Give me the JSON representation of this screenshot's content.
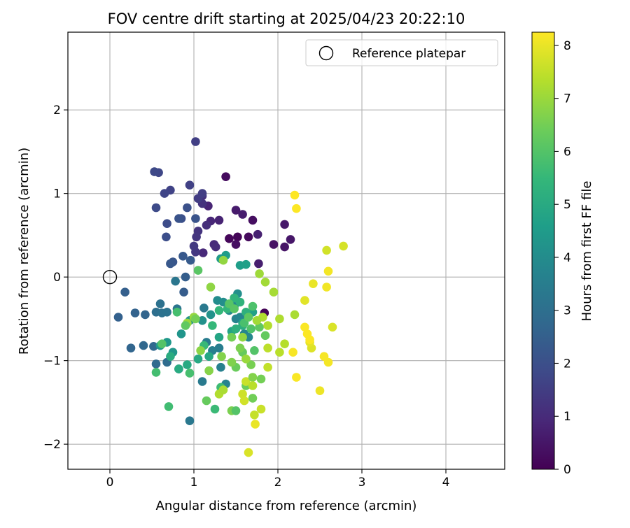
{
  "chart_data": {
    "type": "scatter",
    "title": "FOV centre drift starting at 2025/04/23 20:22:10",
    "xlabel": "Angular distance from reference (arcmin)",
    "ylabel": "Rotation from reference (arcmin)",
    "xlim": [
      -0.5,
      4.7
    ],
    "ylim": [
      -2.3,
      2.93
    ],
    "xticks": [
      0,
      1,
      2,
      3,
      4
    ],
    "xtick_labels": [
      "0",
      "1",
      "2",
      "3",
      "4"
    ],
    "yticks": [
      -2,
      -1,
      0,
      1,
      2
    ],
    "ytick_labels": [
      "−2",
      "−1",
      "0",
      "1",
      "2"
    ],
    "grid": true,
    "legend": {
      "position": "top-right",
      "label": "Reference platepar"
    },
    "reference_point": {
      "x": 0,
      "y": 0
    },
    "colorbar": {
      "label": "Hours from first FF file",
      "min": 0,
      "max": 8.25,
      "ticks": [
        0,
        1,
        2,
        3,
        4,
        5,
        6,
        7,
        8
      ],
      "tick_labels": [
        "0",
        "1",
        "2",
        "3",
        "4",
        "5",
        "6",
        "7",
        "8"
      ],
      "colormap": "viridis"
    },
    "points": [
      {
        "x": 1.84,
        "y": -0.43,
        "h": 0.05
      },
      {
        "x": 1.52,
        "y": 0.48,
        "h": 0.1
      },
      {
        "x": 1.42,
        "y": 0.46,
        "h": 0.15
      },
      {
        "x": 1.65,
        "y": 0.48,
        "h": 0.2
      },
      {
        "x": 1.38,
        "y": 1.2,
        "h": 0.25
      },
      {
        "x": 1.7,
        "y": 0.68,
        "h": 0.3
      },
      {
        "x": 1.5,
        "y": 0.39,
        "h": 0.35
      },
      {
        "x": 1.95,
        "y": 0.39,
        "h": 0.4
      },
      {
        "x": 2.08,
        "y": 0.36,
        "h": 0.45
      },
      {
        "x": 2.15,
        "y": 0.45,
        "h": 0.5
      },
      {
        "x": 2.08,
        "y": 0.63,
        "h": 0.55
      },
      {
        "x": 1.5,
        "y": 0.8,
        "h": 0.6
      },
      {
        "x": 1.58,
        "y": 0.75,
        "h": 0.65
      },
      {
        "x": 1.77,
        "y": 0.16,
        "h": 0.7
      },
      {
        "x": 1.76,
        "y": 0.51,
        "h": 0.75
      },
      {
        "x": 1.3,
        "y": 0.68,
        "h": 0.8
      },
      {
        "x": 1.17,
        "y": 0.85,
        "h": 0.85
      },
      {
        "x": 1.2,
        "y": 0.67,
        "h": 0.9
      },
      {
        "x": 1.11,
        "y": 0.29,
        "h": 0.95
      },
      {
        "x": 1.24,
        "y": 0.39,
        "h": 1.0
      },
      {
        "x": 1.26,
        "y": 0.36,
        "h": 1.05
      },
      {
        "x": 1.15,
        "y": 0.62,
        "h": 1.1
      },
      {
        "x": 1.1,
        "y": 0.97,
        "h": 1.15
      },
      {
        "x": 1.1,
        "y": 0.88,
        "h": 1.2
      },
      {
        "x": 1.05,
        "y": 0.55,
        "h": 1.25
      },
      {
        "x": 1.03,
        "y": 0.48,
        "h": 1.3
      },
      {
        "x": 1.02,
        "y": 0.3,
        "h": 1.35
      },
      {
        "x": 1.0,
        "y": 0.37,
        "h": 1.4
      },
      {
        "x": 1.05,
        "y": 0.94,
        "h": 1.45
      },
      {
        "x": 1.1,
        "y": 1.0,
        "h": 1.5
      },
      {
        "x": 1.02,
        "y": 1.62,
        "h": 1.55
      },
      {
        "x": 0.95,
        "y": 1.1,
        "h": 1.6
      },
      {
        "x": 0.72,
        "y": 1.04,
        "h": 1.65
      },
      {
        "x": 0.65,
        "y": 1.0,
        "h": 1.7
      },
      {
        "x": 0.58,
        "y": 1.25,
        "h": 1.75
      },
      {
        "x": 0.53,
        "y": 1.26,
        "h": 1.8
      },
      {
        "x": 0.55,
        "y": 0.83,
        "h": 1.85
      },
      {
        "x": 0.68,
        "y": 0.64,
        "h": 1.9
      },
      {
        "x": 0.67,
        "y": 0.48,
        "h": 1.95
      },
      {
        "x": 0.85,
        "y": 0.7,
        "h": 2.0
      },
      {
        "x": 0.92,
        "y": 0.83,
        "h": 2.05
      },
      {
        "x": 0.82,
        "y": 0.7,
        "h": 2.1
      },
      {
        "x": 1.02,
        "y": 0.7,
        "h": 2.15
      },
      {
        "x": 0.75,
        "y": 0.18,
        "h": 2.2
      },
      {
        "x": 0.72,
        "y": 0.16,
        "h": 2.25
      },
      {
        "x": 0.87,
        "y": 0.25,
        "h": 2.3
      },
      {
        "x": 0.96,
        "y": 0.2,
        "h": 2.35
      },
      {
        "x": 0.88,
        "y": -0.18,
        "h": 2.4
      },
      {
        "x": 0.9,
        "y": 0.0,
        "h": 2.45
      },
      {
        "x": 0.18,
        "y": -0.18,
        "h": 2.5
      },
      {
        "x": 0.1,
        "y": -0.48,
        "h": 2.55
      },
      {
        "x": 0.3,
        "y": -0.43,
        "h": 2.6
      },
      {
        "x": 0.42,
        "y": -0.45,
        "h": 2.65
      },
      {
        "x": 0.25,
        "y": -0.85,
        "h": 2.7
      },
      {
        "x": 0.4,
        "y": -0.82,
        "h": 2.75
      },
      {
        "x": 0.52,
        "y": -0.83,
        "h": 2.8
      },
      {
        "x": 0.55,
        "y": -1.04,
        "h": 2.85
      },
      {
        "x": 0.68,
        "y": -1.02,
        "h": 2.9
      },
      {
        "x": 0.82,
        "y": -1.1,
        "h": 2.95
      },
      {
        "x": 0.55,
        "y": -0.42,
        "h": 3.0
      },
      {
        "x": 0.6,
        "y": -0.32,
        "h": 3.05
      },
      {
        "x": 0.62,
        "y": -0.43,
        "h": 3.1
      },
      {
        "x": 0.68,
        "y": -0.42,
        "h": 3.15
      },
      {
        "x": 0.8,
        "y": -0.38,
        "h": 3.2
      },
      {
        "x": 0.78,
        "y": -0.05,
        "h": 3.25
      },
      {
        "x": 0.95,
        "y": -1.72,
        "h": 3.3
      },
      {
        "x": 1.12,
        "y": -0.37,
        "h": 3.35
      },
      {
        "x": 1.1,
        "y": -1.25,
        "h": 3.4
      },
      {
        "x": 1.15,
        "y": -0.78,
        "h": 3.45
      },
      {
        "x": 1.3,
        "y": -0.85,
        "h": 3.5
      },
      {
        "x": 1.22,
        "y": -0.88,
        "h": 3.55
      },
      {
        "x": 1.32,
        "y": -1.08,
        "h": 3.6
      },
      {
        "x": 1.38,
        "y": -1.28,
        "h": 3.65
      },
      {
        "x": 1.5,
        "y": -0.5,
        "h": 3.7
      },
      {
        "x": 1.55,
        "y": -0.48,
        "h": 3.75
      },
      {
        "x": 1.6,
        "y": -0.68,
        "h": 3.8
      },
      {
        "x": 1.65,
        "y": -0.72,
        "h": 3.85
      },
      {
        "x": 1.42,
        "y": -0.4,
        "h": 3.9
      },
      {
        "x": 1.48,
        "y": -0.35,
        "h": 3.95
      },
      {
        "x": 1.28,
        "y": -0.28,
        "h": 4.0
      },
      {
        "x": 1.35,
        "y": -0.3,
        "h": 4.05
      },
      {
        "x": 1.52,
        "y": -0.2,
        "h": 4.1
      },
      {
        "x": 1.1,
        "y": -0.52,
        "h": 4.15
      },
      {
        "x": 1.2,
        "y": -0.45,
        "h": 4.2
      },
      {
        "x": 0.95,
        "y": -0.52,
        "h": 4.25
      },
      {
        "x": 0.85,
        "y": -0.68,
        "h": 4.3
      },
      {
        "x": 0.75,
        "y": -0.9,
        "h": 4.35
      },
      {
        "x": 0.68,
        "y": -0.78,
        "h": 4.4
      },
      {
        "x": 0.6,
        "y": -0.82,
        "h": 4.45
      },
      {
        "x": 1.32,
        "y": 0.22,
        "h": 4.5
      },
      {
        "x": 1.38,
        "y": 0.26,
        "h": 4.55
      },
      {
        "x": 1.55,
        "y": 0.14,
        "h": 4.6
      },
      {
        "x": 1.62,
        "y": 0.15,
        "h": 4.65
      },
      {
        "x": 1.7,
        "y": -0.42,
        "h": 4.7
      },
      {
        "x": 1.58,
        "y": -0.55,
        "h": 4.75
      },
      {
        "x": 1.45,
        "y": -0.65,
        "h": 4.8
      },
      {
        "x": 1.3,
        "y": -0.72,
        "h": 4.85
      },
      {
        "x": 1.18,
        "y": -0.95,
        "h": 4.9
      },
      {
        "x": 1.05,
        "y": -0.98,
        "h": 4.95
      },
      {
        "x": 0.92,
        "y": -1.05,
        "h": 5.0
      },
      {
        "x": 0.82,
        "y": -1.1,
        "h": 5.05
      },
      {
        "x": 0.72,
        "y": -0.95,
        "h": 5.1
      },
      {
        "x": 1.58,
        "y": -0.58,
        "h": 5.15
      },
      {
        "x": 1.5,
        "y": -0.62,
        "h": 5.2
      },
      {
        "x": 1.62,
        "y": -0.42,
        "h": 5.25
      },
      {
        "x": 1.55,
        "y": -0.3,
        "h": 5.3
      },
      {
        "x": 1.48,
        "y": -0.25,
        "h": 5.35
      },
      {
        "x": 1.4,
        "y": -0.38,
        "h": 5.4
      },
      {
        "x": 1.3,
        "y": -0.4,
        "h": 5.45
      },
      {
        "x": 1.22,
        "y": -0.58,
        "h": 5.5
      },
      {
        "x": 1.12,
        "y": -0.82,
        "h": 5.55
      },
      {
        "x": 1.25,
        "y": -1.58,
        "h": 5.6
      },
      {
        "x": 1.32,
        "y": -1.32,
        "h": 5.65
      },
      {
        "x": 0.7,
        "y": -1.55,
        "h": 5.7
      },
      {
        "x": 0.55,
        "y": -1.14,
        "h": 5.75
      },
      {
        "x": 0.95,
        "y": -1.15,
        "h": 5.8
      },
      {
        "x": 1.6,
        "y": -0.55,
        "h": 5.85
      },
      {
        "x": 1.7,
        "y": -0.35,
        "h": 5.9
      },
      {
        "x": 1.68,
        "y": -0.62,
        "h": 5.95
      },
      {
        "x": 1.72,
        "y": -0.88,
        "h": 6.0
      },
      {
        "x": 1.42,
        "y": -0.32,
        "h": 6.05
      },
      {
        "x": 1.48,
        "y": -0.38,
        "h": 6.1
      },
      {
        "x": 1.65,
        "y": -0.48,
        "h": 6.15
      },
      {
        "x": 1.78,
        "y": -0.6,
        "h": 6.2
      },
      {
        "x": 1.85,
        "y": -0.7,
        "h": 6.25
      },
      {
        "x": 1.58,
        "y": -0.9,
        "h": 6.3
      },
      {
        "x": 1.5,
        "y": -1.08,
        "h": 6.35
      },
      {
        "x": 1.62,
        "y": -1.3,
        "h": 6.4
      },
      {
        "x": 1.7,
        "y": -1.45,
        "h": 6.45
      },
      {
        "x": 1.8,
        "y": -1.22,
        "h": 6.5
      },
      {
        "x": 1.68,
        "y": -1.05,
        "h": 6.55
      },
      {
        "x": 1.55,
        "y": -0.85,
        "h": 6.6
      },
      {
        "x": 1.45,
        "y": -1.02,
        "h": 6.65
      },
      {
        "x": 1.33,
        "y": -0.95,
        "h": 6.7
      },
      {
        "x": 1.18,
        "y": -1.12,
        "h": 6.75
      },
      {
        "x": 1.08,
        "y": -0.88,
        "h": 6.8
      },
      {
        "x": 1.2,
        "y": -0.12,
        "h": 6.85
      },
      {
        "x": 1.35,
        "y": 0.2,
        "h": 6.9
      },
      {
        "x": 1.0,
        "y": -0.48,
        "h": 6.95
      },
      {
        "x": 0.92,
        "y": -0.55,
        "h": 7.0
      },
      {
        "x": 1.78,
        "y": 0.04,
        "h": 7.05
      },
      {
        "x": 1.85,
        "y": -0.06,
        "h": 7.1
      },
      {
        "x": 1.95,
        "y": -0.18,
        "h": 7.15
      },
      {
        "x": 2.2,
        "y": -0.45,
        "h": 7.2
      },
      {
        "x": 2.02,
        "y": -0.5,
        "h": 7.25
      },
      {
        "x": 1.88,
        "y": -0.58,
        "h": 7.3
      },
      {
        "x": 2.08,
        "y": -0.8,
        "h": 7.35
      },
      {
        "x": 2.02,
        "y": -0.9,
        "h": 7.4
      },
      {
        "x": 1.88,
        "y": -0.85,
        "h": 7.45
      },
      {
        "x": 1.88,
        "y": -1.08,
        "h": 7.5
      },
      {
        "x": 1.72,
        "y": -1.65,
        "h": 7.55
      },
      {
        "x": 1.62,
        "y": -1.25,
        "h": 7.6
      },
      {
        "x": 1.58,
        "y": -1.4,
        "h": 7.65
      },
      {
        "x": 2.58,
        "y": 0.32,
        "h": 7.7
      },
      {
        "x": 2.78,
        "y": 0.37,
        "h": 7.75
      },
      {
        "x": 2.65,
        "y": -0.6,
        "h": 7.8
      },
      {
        "x": 2.4,
        "y": -0.85,
        "h": 7.85
      },
      {
        "x": 2.32,
        "y": -0.28,
        "h": 7.9
      },
      {
        "x": 2.38,
        "y": -0.78,
        "h": 7.95
      },
      {
        "x": 2.42,
        "y": -0.08,
        "h": 8.0
      },
      {
        "x": 2.5,
        "y": -1.36,
        "h": 8.05
      },
      {
        "x": 2.58,
        "y": -0.12,
        "h": 8.1
      },
      {
        "x": 2.6,
        "y": 0.07,
        "h": 8.12
      },
      {
        "x": 2.6,
        "y": -1.02,
        "h": 8.14
      },
      {
        "x": 2.55,
        "y": -0.95,
        "h": 8.16
      },
      {
        "x": 2.18,
        "y": -0.9,
        "h": 8.18
      },
      {
        "x": 2.22,
        "y": -1.2,
        "h": 8.2
      },
      {
        "x": 2.32,
        "y": -0.6,
        "h": 8.21
      },
      {
        "x": 2.35,
        "y": -0.68,
        "h": 8.22
      },
      {
        "x": 2.38,
        "y": -0.75,
        "h": 8.23
      },
      {
        "x": 2.22,
        "y": 0.82,
        "h": 8.24
      },
      {
        "x": 2.2,
        "y": 0.98,
        "h": 8.25
      },
      {
        "x": 1.8,
        "y": -1.58,
        "h": 7.6
      },
      {
        "x": 1.73,
        "y": -1.76,
        "h": 8.0
      },
      {
        "x": 1.65,
        "y": -2.1,
        "h": 7.8
      },
      {
        "x": 1.6,
        "y": -1.48,
        "h": 7.7
      },
      {
        "x": 1.82,
        "y": -0.48,
        "h": 7.3
      },
      {
        "x": 1.75,
        "y": -0.52,
        "h": 7.1
      },
      {
        "x": 1.58,
        "y": -0.72,
        "h": 6.9
      },
      {
        "x": 1.62,
        "y": -0.98,
        "h": 7.0
      },
      {
        "x": 1.45,
        "y": -0.72,
        "h": 6.5
      },
      {
        "x": 1.3,
        "y": -1.4,
        "h": 7.3
      },
      {
        "x": 1.45,
        "y": -1.6,
        "h": 6.6
      },
      {
        "x": 1.35,
        "y": -1.35,
        "h": 7.2
      },
      {
        "x": 1.15,
        "y": -1.48,
        "h": 6.3
      },
      {
        "x": 1.5,
        "y": -1.6,
        "h": 6.0
      },
      {
        "x": 1.7,
        "y": -1.2,
        "h": 6.7
      },
      {
        "x": 1.7,
        "y": -1.3,
        "h": 7.4
      },
      {
        "x": 0.62,
        "y": -0.8,
        "h": 6.0
      },
      {
        "x": 0.8,
        "y": -0.42,
        "h": 5.8
      },
      {
        "x": 0.9,
        "y": -0.58,
        "h": 6.2
      },
      {
        "x": 1.05,
        "y": 0.08,
        "h": 6.1
      },
      {
        "x": 1.02,
        "y": -0.5,
        "h": 6.5
      }
    ]
  }
}
